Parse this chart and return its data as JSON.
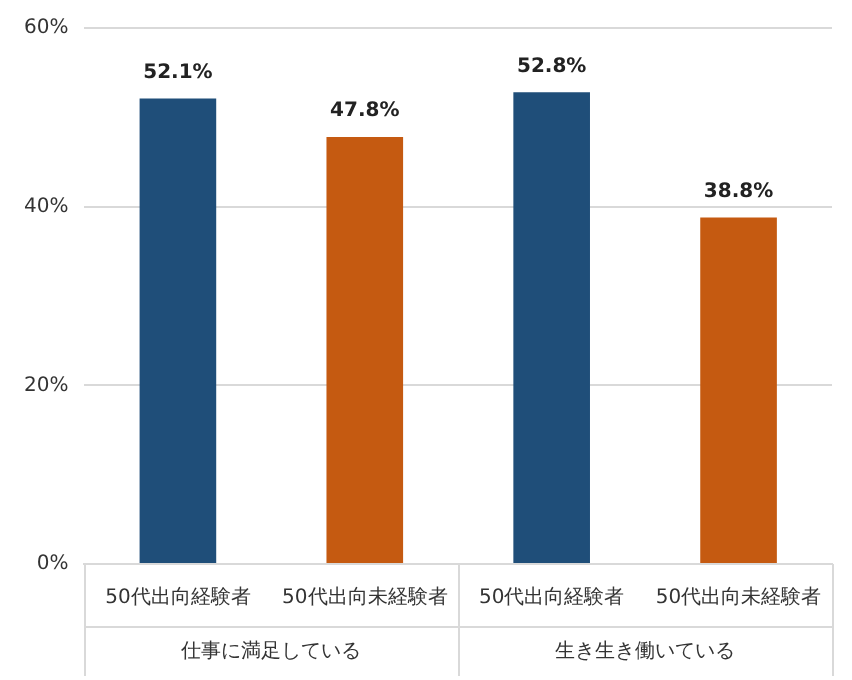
{
  "chart_data": {
    "type": "bar",
    "categories": [
      "仕事に満足している",
      "生き生き働いている"
    ],
    "series": [
      {
        "name": "50代出向経験者",
        "color": "#1f4e79",
        "values": [
          52.1,
          52.8
        ],
        "value_labels": [
          "52.1%",
          "52.8%"
        ]
      },
      {
        "name": "50代出向未経験者",
        "color": "#c55a11",
        "values": [
          47.8,
          38.8
        ],
        "value_labels": [
          "47.8%",
          "38.8%"
        ]
      }
    ],
    "ylim": [
      0,
      60
    ],
    "yticks": [
      {
        "value": 0,
        "label": "0%"
      },
      {
        "value": 20,
        "label": "20%"
      },
      {
        "value": 40,
        "label": "40%"
      },
      {
        "value": 60,
        "label": "60%"
      }
    ],
    "grid": "y",
    "legend": false
  }
}
